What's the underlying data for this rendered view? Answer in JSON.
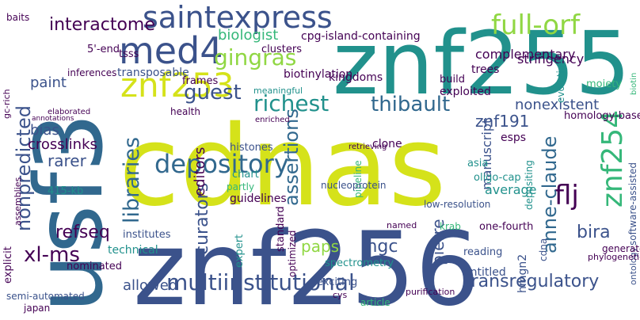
{
  "palette": {
    "background": "#ffffff",
    "dark_purple": "#440154",
    "indigo": "#3b528b",
    "blue": "#31688e",
    "teal": "#21918c",
    "green": "#35b779",
    "lime": "#90d743",
    "yellow": "#d5e21a"
  },
  "words": [
    "cdnas",
    "znf256",
    "znf255",
    "usf3",
    "saintexpress",
    "med4",
    "znf253",
    "znf254",
    "full-orf",
    "depository",
    "multiinstitutional",
    "libraries",
    "gingras",
    "richest",
    "thibault",
    "guest",
    "flj",
    "anne-claude",
    "nonpredicted",
    "xl-ms",
    "transregulatory",
    "assertions",
    "curators",
    "interactome",
    "biologist",
    "paps",
    "pierre",
    "znf191",
    "allowed",
    "bira",
    "editors",
    "mgc",
    "refseq",
    "rarer",
    "crosslinks",
    "bias",
    "nonexistent",
    "paint",
    "cpg-island-containing",
    "exploited",
    "manuscript",
    "hmgn2",
    "depositing",
    "complementary",
    "clusters",
    "transposable",
    "stringency",
    "tsss",
    "biotinylation",
    "moiety",
    "evolution",
    "homology-based",
    "kingdoms",
    "trees",
    "frames",
    "meaningful",
    "chart",
    "histones",
    "partly",
    "asia",
    "average",
    "oligo-cap",
    "esps",
    "clone",
    "pipeline",
    "nucleoprotein",
    "415-kb",
    "nominated",
    "explicit",
    "institutes",
    "technical",
    "expert",
    "guidelines",
    "standard",
    "spectrometry",
    "exciting",
    "entitled",
    "reading",
    "one-fourth",
    "article",
    "krab",
    "cdna",
    "software-assisted",
    "low-resolution",
    "japan",
    "semi-automated",
    "5'-end",
    "baits",
    "inferences",
    "build",
    "health",
    "enriched",
    "named",
    "optimized",
    "retrieving",
    "gc-rich",
    "assemblies",
    "elaborated",
    "ontology",
    "biotin",
    "annotations",
    "generated",
    "cys",
    "purification",
    "phylogenetic",
    "intriguing"
  ]
}
